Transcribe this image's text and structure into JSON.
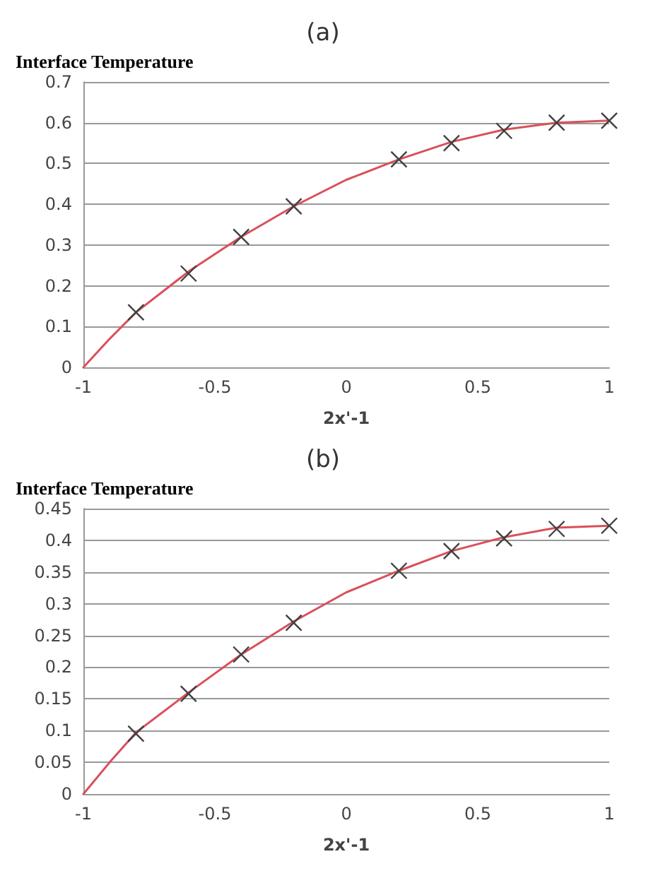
{
  "chart_data": [
    {
      "type": "line",
      "title": "(a)",
      "xlabel": "2x'-1",
      "ylabel": "Interface Temperature",
      "xlim": [
        -1,
        1
      ],
      "xticks": [
        -1,
        -0.5,
        0,
        0.5,
        1
      ],
      "ylim": [
        0,
        0.7
      ],
      "yticks": [
        0,
        0.1,
        0.2,
        0.3,
        0.4,
        0.5,
        0.6,
        0.7
      ],
      "grid": "y",
      "series": [
        {
          "color": "#d9505a",
          "marker": "none",
          "line_style": "solid",
          "x": [
            -1,
            -0.9,
            -0.8,
            -0.6,
            -0.4,
            -0.2,
            0,
            0.2,
            0.4,
            0.6,
            0.8,
            1
          ],
          "values": [
            0,
            0.07,
            0.135,
            0.235,
            0.32,
            0.395,
            0.46,
            0.51,
            0.553,
            0.583,
            0.6,
            0.605
          ]
        },
        {
          "type": "scatter",
          "color": "#404040",
          "marker": "cross",
          "x": [
            -0.8,
            -0.6,
            -0.4,
            -0.2,
            0.2,
            0.4,
            0.6,
            0.8,
            1
          ],
          "values": [
            0.135,
            0.23,
            0.32,
            0.395,
            0.51,
            0.55,
            0.58,
            0.6,
            0.605
          ]
        }
      ]
    },
    {
      "type": "line",
      "title": "(b)",
      "xlabel": "2x'-1",
      "ylabel": "Interface Temperature",
      "xlim": [
        -1,
        1
      ],
      "xticks": [
        -1,
        -0.5,
        0,
        0.5,
        1
      ],
      "ylim": [
        0,
        0.45
      ],
      "yticks": [
        0,
        0.05,
        0.1,
        0.15,
        0.2,
        0.25,
        0.3,
        0.35,
        0.4,
        0.45
      ],
      "grid": "y",
      "series": [
        {
          "color": "#d9505a",
          "marker": "none",
          "line_style": "solid",
          "x": [
            -1,
            -0.9,
            -0.8,
            -0.6,
            -0.4,
            -0.2,
            0,
            0.2,
            0.4,
            0.6,
            0.8,
            1
          ],
          "values": [
            0,
            0.05,
            0.097,
            0.16,
            0.22,
            0.272,
            0.318,
            0.352,
            0.383,
            0.405,
            0.42,
            0.423
          ]
        },
        {
          "type": "scatter",
          "color": "#404040",
          "marker": "cross",
          "x": [
            -0.8,
            -0.6,
            -0.4,
            -0.2,
            0.2,
            0.4,
            0.6,
            0.8,
            1
          ],
          "values": [
            0.095,
            0.158,
            0.22,
            0.27,
            0.352,
            0.383,
            0.403,
            0.418,
            0.423
          ]
        }
      ]
    }
  ]
}
